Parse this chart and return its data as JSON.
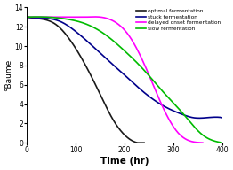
{
  "title": "",
  "xlabel": "Time (hr)",
  "ylabel": "°Baume",
  "xlim": [
    0,
    400
  ],
  "ylim": [
    0,
    14
  ],
  "xticks": [
    0,
    100,
    200,
    300,
    400
  ],
  "yticks": [
    0,
    2,
    4,
    6,
    8,
    10,
    12,
    14
  ],
  "background_color": "#ffffff",
  "legend": [
    {
      "label": "optimal fermentation",
      "color": "#1a1a1a"
    },
    {
      "label": "stuck fermentation",
      "color": "#00008b"
    },
    {
      "label": "delayed onset fermentation",
      "color": "#ff00ff"
    },
    {
      "label": "slow fermentation",
      "color": "#00bb00"
    }
  ],
  "optimal": {
    "x": [
      0,
      30,
      60,
      90,
      120,
      150,
      175,
      200,
      220,
      240
    ],
    "y": [
      13.0,
      12.8,
      12.2,
      10.5,
      8.0,
      5.0,
      2.5,
      0.8,
      0.1,
      0.0
    ],
    "color": "#1a1a1a",
    "lw": 1.2
  },
  "stuck": {
    "x": [
      0,
      30,
      70,
      100,
      130,
      160,
      200,
      240,
      280,
      320,
      340,
      370,
      400
    ],
    "y": [
      13.0,
      12.9,
      12.5,
      11.5,
      10.2,
      8.8,
      7.0,
      5.2,
      3.8,
      2.9,
      2.6,
      2.6,
      2.6
    ],
    "color": "#00008b",
    "lw": 1.2
  },
  "delayed": {
    "x": [
      0,
      40,
      80,
      100,
      120,
      150,
      180,
      210,
      250,
      280,
      310,
      340,
      360
    ],
    "y": [
      13.0,
      13.0,
      13.0,
      13.0,
      13.0,
      13.0,
      12.5,
      11.0,
      7.0,
      3.5,
      1.0,
      0.1,
      0.0
    ],
    "color": "#ff00ff",
    "lw": 1.2
  },
  "slow": {
    "x": [
      0,
      40,
      80,
      120,
      160,
      200,
      240,
      280,
      320,
      360,
      390,
      400
    ],
    "y": [
      13.0,
      13.0,
      12.8,
      12.3,
      11.2,
      9.5,
      7.5,
      5.2,
      3.0,
      0.8,
      0.1,
      0.0
    ],
    "color": "#00bb00",
    "lw": 1.2
  }
}
